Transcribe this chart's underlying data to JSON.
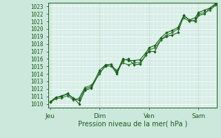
{
  "xlabel": "Pression niveau de la mer( hPa )",
  "ylim": [
    1009.5,
    1023.5
  ],
  "yticks": [
    1010,
    1011,
    1012,
    1013,
    1014,
    1015,
    1016,
    1017,
    1018,
    1019,
    1020,
    1021,
    1022,
    1023
  ],
  "bg_color": "#cce8dd",
  "plot_bg": "#d6ede6",
  "grid_color": "#ffffff",
  "line_color": "#1a5c1a",
  "line_color2": "#2e7d2e",
  "xtick_labels": [
    "Jeu",
    "Dim",
    "Ven",
    "Sam"
  ],
  "xtick_positions": [
    0.0,
    3.0,
    6.0,
    9.0
  ],
  "xlim": [
    -0.1,
    10.1
  ],
  "series1": [
    [
      0.0,
      1010.2
    ],
    [
      0.35,
      1010.8
    ],
    [
      0.7,
      1011.1
    ],
    [
      1.05,
      1011.3
    ],
    [
      1.4,
      1010.8
    ],
    [
      1.75,
      1010.0
    ],
    [
      2.1,
      1011.8
    ],
    [
      2.5,
      1012.1
    ],
    [
      3.0,
      1014.2
    ],
    [
      3.35,
      1015.0
    ],
    [
      3.7,
      1015.1
    ],
    [
      4.05,
      1014.0
    ],
    [
      4.4,
      1015.8
    ],
    [
      4.75,
      1016.0
    ],
    [
      5.1,
      1015.2
    ],
    [
      5.45,
      1015.3
    ],
    [
      5.8,
      1016.5
    ],
    [
      6.0,
      1017.0
    ],
    [
      6.35,
      1017.0
    ],
    [
      6.7,
      1018.5
    ],
    [
      7.05,
      1019.0
    ],
    [
      7.4,
      1019.2
    ],
    [
      7.75,
      1019.5
    ],
    [
      8.1,
      1021.8
    ],
    [
      8.45,
      1021.2
    ],
    [
      8.8,
      1021.0
    ],
    [
      9.0,
      1021.8
    ],
    [
      9.35,
      1022.0
    ],
    [
      9.7,
      1022.8
    ],
    [
      10.05,
      1023.2
    ]
  ],
  "series2": [
    [
      0.0,
      1010.2
    ],
    [
      0.35,
      1010.7
    ],
    [
      0.7,
      1010.8
    ],
    [
      1.05,
      1011.1
    ],
    [
      1.4,
      1010.5
    ],
    [
      1.75,
      1010.8
    ],
    [
      2.1,
      1012.2
    ],
    [
      2.5,
      1012.5
    ],
    [
      3.0,
      1014.0
    ],
    [
      3.35,
      1015.2
    ],
    [
      3.7,
      1015.0
    ],
    [
      4.05,
      1014.5
    ],
    [
      4.4,
      1015.5
    ],
    [
      4.75,
      1015.2
    ],
    [
      5.1,
      1015.5
    ],
    [
      5.45,
      1015.5
    ],
    [
      5.8,
      1016.5
    ],
    [
      6.0,
      1017.2
    ],
    [
      6.35,
      1017.5
    ],
    [
      6.7,
      1018.5
    ],
    [
      7.05,
      1019.2
    ],
    [
      7.4,
      1019.5
    ],
    [
      7.75,
      1020.0
    ],
    [
      8.1,
      1021.5
    ],
    [
      8.45,
      1021.0
    ],
    [
      8.8,
      1021.2
    ],
    [
      9.0,
      1022.0
    ],
    [
      9.35,
      1022.2
    ],
    [
      9.7,
      1022.5
    ],
    [
      10.05,
      1023.2
    ]
  ],
  "series3": [
    [
      0.0,
      1010.3
    ],
    [
      0.35,
      1010.9
    ],
    [
      0.7,
      1011.0
    ],
    [
      1.05,
      1011.4
    ],
    [
      1.4,
      1010.7
    ],
    [
      1.75,
      1010.5
    ],
    [
      2.1,
      1012.0
    ],
    [
      2.5,
      1012.3
    ],
    [
      3.0,
      1014.5
    ],
    [
      3.35,
      1015.2
    ],
    [
      3.7,
      1015.3
    ],
    [
      4.05,
      1014.2
    ],
    [
      4.4,
      1016.0
    ],
    [
      4.75,
      1015.8
    ],
    [
      5.1,
      1015.8
    ],
    [
      5.45,
      1015.9
    ],
    [
      5.8,
      1016.8
    ],
    [
      6.0,
      1017.5
    ],
    [
      6.35,
      1017.8
    ],
    [
      6.7,
      1018.8
    ],
    [
      7.05,
      1019.5
    ],
    [
      7.4,
      1019.8
    ],
    [
      7.75,
      1020.2
    ],
    [
      8.1,
      1021.8
    ],
    [
      8.45,
      1021.2
    ],
    [
      8.8,
      1021.5
    ],
    [
      9.0,
      1022.2
    ],
    [
      9.35,
      1022.5
    ],
    [
      9.7,
      1022.8
    ],
    [
      10.05,
      1023.4
    ]
  ]
}
